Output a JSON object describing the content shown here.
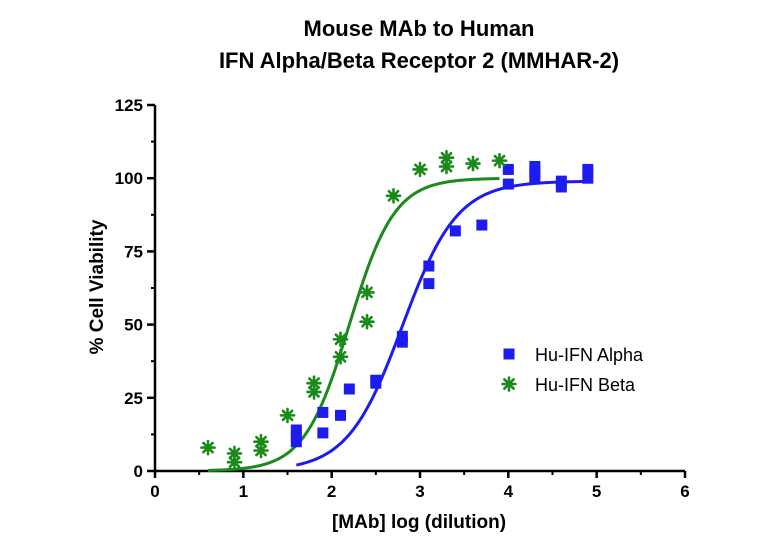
{
  "chart_data": {
    "type": "scatter",
    "title": [
      "Mouse MAb to Human",
      "IFN Alpha/Beta Receptor 2 (MMHAR-2)"
    ],
    "xlabel": "[MAb] log (dilution)",
    "ylabel": "% Cell Viability",
    "xlim": [
      0,
      6
    ],
    "ylim": [
      0,
      125
    ],
    "xticks": [
      0,
      1,
      2,
      3,
      4,
      5,
      6
    ],
    "yticks": [
      0,
      25,
      50,
      75,
      100,
      125
    ],
    "legend_position": "center-right",
    "grid": false,
    "series": [
      {
        "name": "Hu-IFN Alpha",
        "marker": "square",
        "color": "#1c1cf0",
        "points": [
          [
            1.6,
            10
          ],
          [
            1.6,
            12
          ],
          [
            1.6,
            14
          ],
          [
            1.9,
            13
          ],
          [
            1.9,
            20
          ],
          [
            2.1,
            19
          ],
          [
            2.2,
            28
          ],
          [
            2.5,
            30
          ],
          [
            2.5,
            31
          ],
          [
            2.8,
            44
          ],
          [
            2.8,
            46
          ],
          [
            3.1,
            64
          ],
          [
            3.1,
            70
          ],
          [
            3.4,
            82
          ],
          [
            3.7,
            84
          ],
          [
            4.0,
            98
          ],
          [
            4.0,
            103
          ],
          [
            4.3,
            100
          ],
          [
            4.3,
            102
          ],
          [
            4.3,
            104
          ],
          [
            4.6,
            97
          ],
          [
            4.6,
            99
          ],
          [
            4.9,
            100
          ],
          [
            4.9,
            103
          ]
        ],
        "fit": {
          "bottom": 0,
          "top": 99,
          "logEC50": 2.8,
          "hill": 1.4,
          "x_range": [
            1.6,
            4.9
          ]
        }
      },
      {
        "name": "Hu-IFN Beta",
        "marker": "asterisk",
        "color": "#1a8a1a",
        "points": [
          [
            0.6,
            8
          ],
          [
            0.9,
            3
          ],
          [
            0.9,
            6
          ],
          [
            1.2,
            7
          ],
          [
            1.2,
            10
          ],
          [
            1.5,
            19
          ],
          [
            1.8,
            27
          ],
          [
            1.8,
            30
          ],
          [
            2.1,
            39
          ],
          [
            2.1,
            45
          ],
          [
            2.4,
            51
          ],
          [
            2.4,
            61
          ],
          [
            2.7,
            94
          ],
          [
            3.0,
            103
          ],
          [
            3.3,
            104
          ],
          [
            3.3,
            107
          ],
          [
            3.6,
            105
          ],
          [
            3.9,
            106
          ]
        ],
        "fit": {
          "bottom": 0,
          "top": 100,
          "logEC50": 2.2,
          "hill": 1.7,
          "x_range": [
            0.6,
            3.9
          ]
        }
      }
    ]
  }
}
